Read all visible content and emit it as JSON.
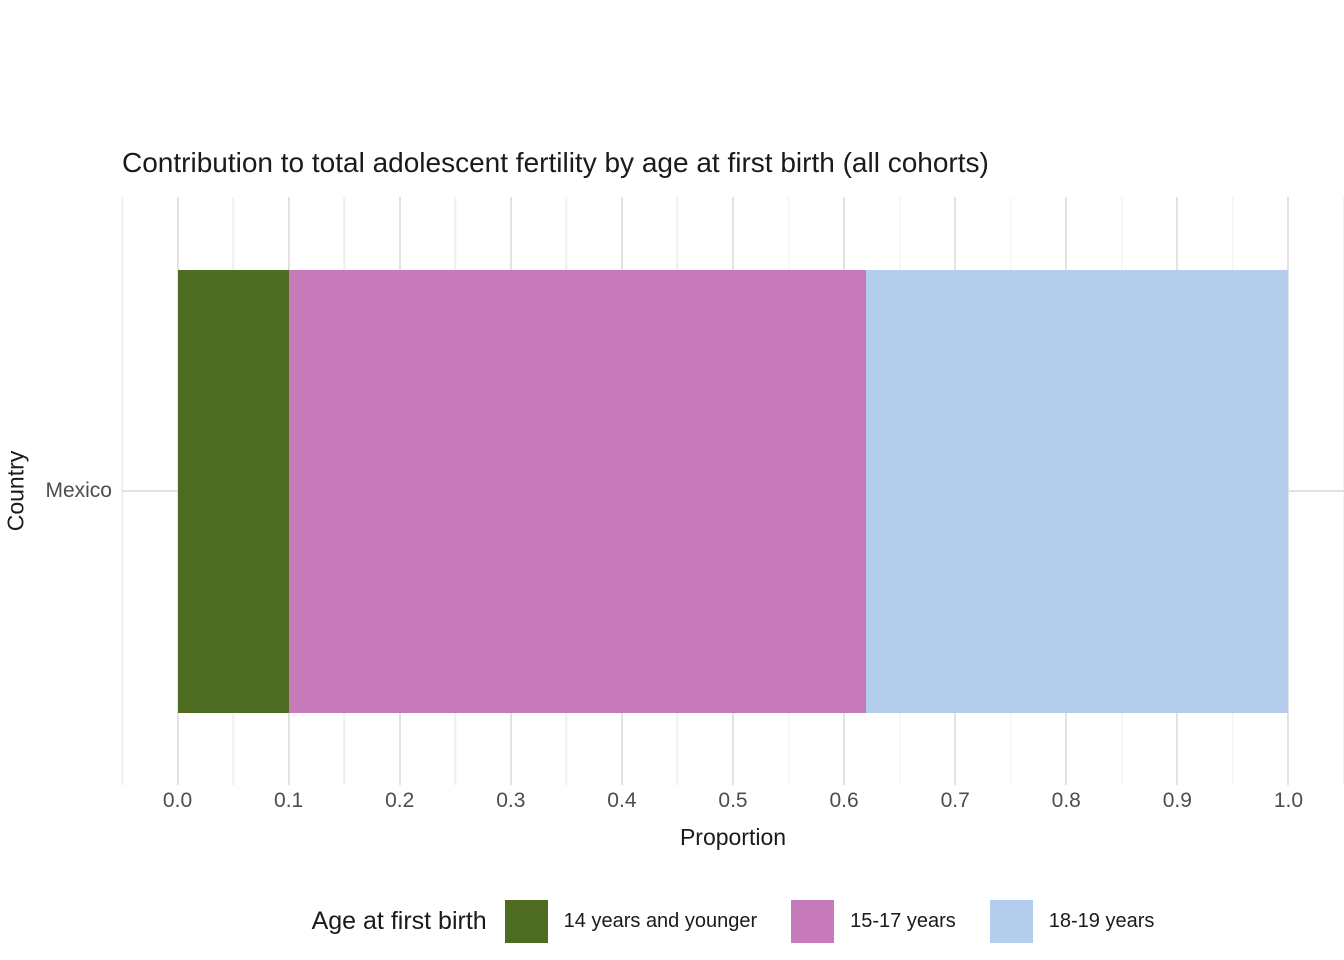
{
  "axes": {
    "y_tick": "Mexico",
    "x_ticks": [
      "0.0",
      "0.1",
      "0.2",
      "0.3",
      "0.4",
      "0.5",
      "0.6",
      "0.7",
      "0.8",
      "0.9",
      "1.0"
    ]
  },
  "colors": {
    "background": "#ffffff",
    "grid_major": "#e2e2e2",
    "grid_minor": "#efefef",
    "tick_text": "#4d4d4d",
    "title_text": "#1a1a1a"
  },
  "chart_data": {
    "type": "bar",
    "orientation": "horizontal",
    "stacked": true,
    "title": "Contribution to total adolescent fertility by age at first birth (all cohorts)",
    "xlabel": "Proportion",
    "ylabel": "Country",
    "categories": [
      "Mexico"
    ],
    "series": [
      {
        "name": "14 years and younger",
        "values": [
          0.1
        ],
        "color": "#4d6b21"
      },
      {
        "name": "15-17 years",
        "values": [
          0.52
        ],
        "color": "#c77aba"
      },
      {
        "name": "18-19 years",
        "values": [
          0.38
        ],
        "color": "#b4cdec"
      }
    ],
    "xlim": [
      0.0,
      1.0
    ],
    "x_tick_step": 0.1,
    "x_minor_step": 0.05,
    "x_expand": 0.05,
    "grid": true,
    "legend_title": "Age at first birth",
    "legend_position": "bottom"
  }
}
